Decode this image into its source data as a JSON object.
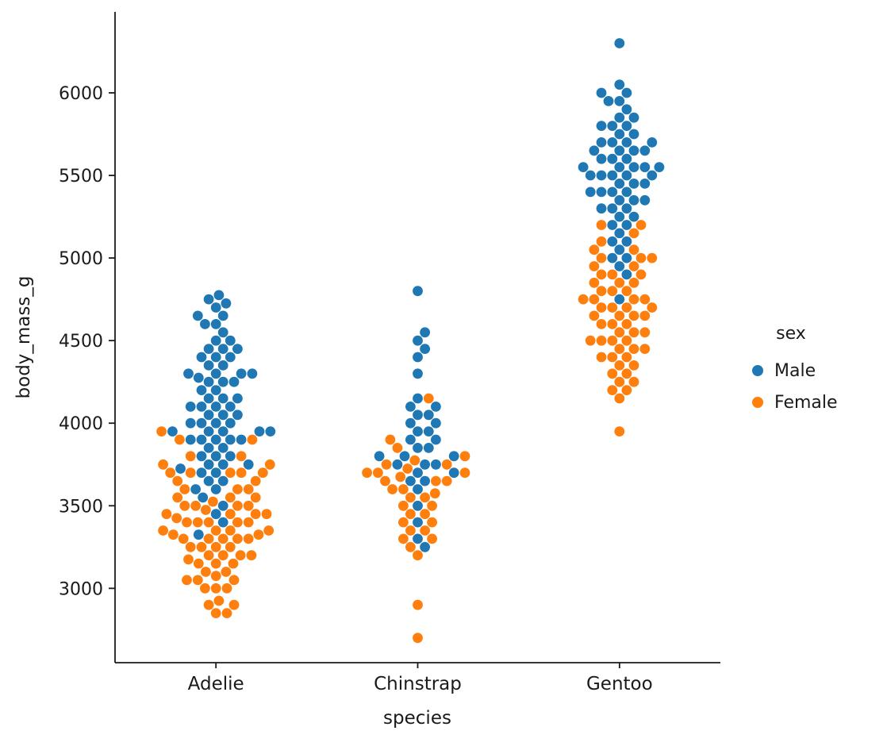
{
  "chart_data": {
    "type": "scatter",
    "subtype": "swarm",
    "title": "",
    "xlabel": "species",
    "ylabel": "body_mass_g",
    "categories": [
      "Adelie",
      "Chinstrap",
      "Gentoo"
    ],
    "yticks": [
      3000,
      3500,
      4000,
      4500,
      5000,
      5500,
      6000
    ],
    "ylim": [
      2550,
      6490
    ],
    "grid": false,
    "legend": {
      "title": "sex",
      "position": "right",
      "entries": [
        {
          "label": "Male",
          "color": "#1f77b4"
        },
        {
          "label": "Female",
          "color": "#ff7f0e"
        }
      ]
    },
    "series": [
      {
        "name": "Male",
        "category": "Adelie",
        "color": "#1f77b4",
        "values": [
          3325,
          3400,
          3450,
          3500,
          3550,
          3600,
          3600,
          3650,
          3650,
          3700,
          3700,
          3725,
          3750,
          3750,
          3750,
          3800,
          3800,
          3800,
          3850,
          3850,
          3900,
          3900,
          3900,
          3900,
          3900,
          3950,
          3950,
          3950,
          3950,
          3950,
          4000,
          4000,
          4000,
          4000,
          4050,
          4050,
          4050,
          4100,
          4100,
          4100,
          4100,
          4150,
          4150,
          4150,
          4200,
          4200,
          4250,
          4250,
          4250,
          4275,
          4300,
          4300,
          4300,
          4300,
          4350,
          4350,
          4400,
          4400,
          4400,
          4450,
          4450,
          4450,
          4500,
          4500,
          4550,
          4600,
          4600,
          4650,
          4650,
          4700,
          4725,
          4750,
          4775
        ]
      },
      {
        "name": "Female",
        "category": "Adelie",
        "color": "#ff7f0e",
        "values": [
          2850,
          2850,
          2900,
          2900,
          2925,
          3000,
          3000,
          3000,
          3050,
          3050,
          3050,
          3075,
          3100,
          3100,
          3150,
          3150,
          3150,
          3175,
          3200,
          3200,
          3200,
          3200,
          3250,
          3250,
          3250,
          3250,
          3300,
          3300,
          3300,
          3300,
          3300,
          3325,
          3325,
          3350,
          3350,
          3350,
          3350,
          3400,
          3400,
          3400,
          3400,
          3400,
          3425,
          3450,
          3450,
          3450,
          3450,
          3475,
          3500,
          3500,
          3500,
          3500,
          3525,
          3550,
          3550,
          3550,
          3600,
          3600,
          3600,
          3650,
          3650,
          3700,
          3700,
          3700,
          3700,
          3700,
          3750,
          3750,
          3800,
          3800,
          3900,
          3900,
          3950
        ]
      },
      {
        "name": "Male",
        "category": "Chinstrap",
        "color": "#1f77b4",
        "values": [
          3250,
          3300,
          3400,
          3500,
          3600,
          3650,
          3650,
          3700,
          3700,
          3750,
          3750,
          3750,
          3800,
          3800,
          3800,
          3850,
          3850,
          3900,
          3900,
          3950,
          3950,
          4000,
          4000,
          4050,
          4050,
          4100,
          4100,
          4150,
          4300,
          4400,
          4450,
          4500,
          4550,
          4800
        ]
      },
      {
        "name": "Female",
        "category": "Chinstrap",
        "color": "#ff7f0e",
        "values": [
          2700,
          2900,
          3200,
          3250,
          3300,
          3300,
          3350,
          3350,
          3400,
          3400,
          3450,
          3450,
          3500,
          3500,
          3550,
          3550,
          3575,
          3600,
          3600,
          3650,
          3650,
          3650,
          3675,
          3700,
          3700,
          3700,
          3725,
          3750,
          3750,
          3775,
          3800,
          3850,
          3900,
          4150
        ]
      },
      {
        "name": "Male",
        "category": "Gentoo",
        "color": "#1f77b4",
        "values": [
          4750,
          4900,
          4950,
          5000,
          5000,
          5050,
          5100,
          5100,
          5150,
          5200,
          5200,
          5250,
          5250,
          5300,
          5300,
          5300,
          5350,
          5350,
          5350,
          5400,
          5400,
          5400,
          5400,
          5450,
          5450,
          5450,
          5500,
          5500,
          5500,
          5500,
          5500,
          5550,
          5550,
          5550,
          5550,
          5550,
          5600,
          5600,
          5600,
          5650,
          5650,
          5650,
          5650,
          5700,
          5700,
          5700,
          5700,
          5750,
          5750,
          5800,
          5800,
          5800,
          5850,
          5850,
          5900,
          5950,
          5950,
          6000,
          6000,
          6050,
          6300
        ]
      },
      {
        "name": "Female",
        "category": "Gentoo",
        "color": "#ff7f0e",
        "values": [
          3950,
          4150,
          4200,
          4200,
          4250,
          4250,
          4300,
          4300,
          4350,
          4350,
          4400,
          4400,
          4400,
          4450,
          4450,
          4450,
          4500,
          4500,
          4500,
          4500,
          4550,
          4550,
          4550,
          4600,
          4600,
          4600,
          4650,
          4650,
          4650,
          4650,
          4700,
          4700,
          4700,
          4700,
          4750,
          4750,
          4750,
          4750,
          4800,
          4800,
          4800,
          4850,
          4850,
          4850,
          4900,
          4900,
          4900,
          4950,
          4950,
          5000,
          5000,
          5000,
          5050,
          5050,
          5100,
          5150,
          5200,
          5200
        ]
      }
    ]
  }
}
